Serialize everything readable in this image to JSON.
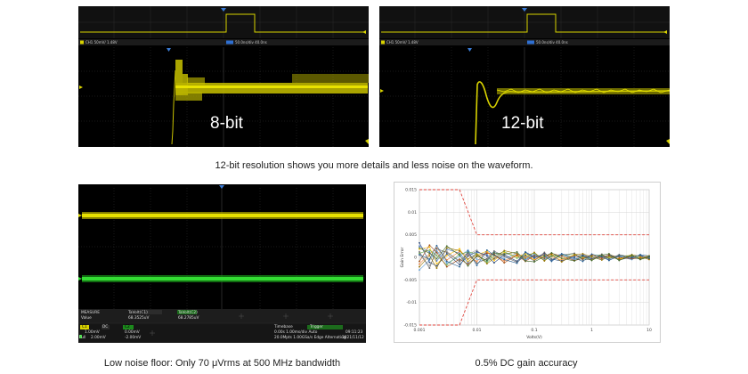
{
  "panels": {
    "p8": {
      "overview_left": "CH1 50mV/ 1.48V",
      "overview_right": "50.0ns/div  40.0ns",
      "resolution_label": "8-bit"
    },
    "p12": {
      "overview_left": "CH1 50mV/ 1.48V",
      "overview_right": "50.0ns/div  40.0ns",
      "resolution_label": "12-bit"
    },
    "noise": {
      "measure": {
        "title": "MEASURE",
        "col1": "TaVolt(C1)",
        "col2": "TaVolt(C2)",
        "row_label": "Value",
        "val1": "68.3525uV",
        "val2": "68.2785uV"
      },
      "channels": {
        "c1_name": "C1",
        "c1_row": [
          "DC",
          "1.00mV",
          "0.00mV"
        ],
        "c2_name": "C2",
        "c2_row": [
          "Full",
          "2.00mV",
          "-2.00mV"
        ]
      },
      "timebase": {
        "title": "Timebase",
        "line1": "0.00s  1.00ms/div  Auto",
        "line2": "20.0Mpts  1.00GSa/s  Edge  Alternating",
        "trigger": "Trigger",
        "date": "09:11:23",
        "date2": "2021/11/12"
      }
    }
  },
  "captions": {
    "top": "12-bit resolution shows you more details and less noise on the waveform.",
    "bottom_left": "Low noise floor: Only 70 μVrms at 500 MHz bandwidth",
    "bottom_right": "0.5% DC gain accuracy"
  },
  "chart_data": {
    "type": "line",
    "ylabel": "Gain Error",
    "xlabel": "Volts(V)",
    "x_scale": "log",
    "xlim": [
      0.001,
      10
    ],
    "ylim": [
      -0.015,
      0.015
    ],
    "x_ticks": [
      "0.001",
      "0.01",
      "0.1",
      "1",
      "10"
    ],
    "y_ticks": [
      "0.015",
      "0.01",
      "0.005",
      "0",
      "-0.005",
      "-0.01",
      "-0.015"
    ],
    "grid": true,
    "limit_lines": {
      "color": "#e0443c",
      "upper": [
        [
          0.001,
          0.015
        ],
        [
          0.005,
          0.015
        ],
        [
          0.01,
          0.005
        ],
        [
          10,
          0.005
        ]
      ],
      "lower": [
        [
          0.001,
          -0.015
        ],
        [
          0.005,
          -0.015
        ],
        [
          0.01,
          -0.005
        ],
        [
          10,
          -0.005
        ]
      ]
    },
    "x": [
      0.001,
      0.0015,
      0.002,
      0.003,
      0.005,
      0.007,
      0.01,
      0.015,
      0.02,
      0.03,
      0.05,
      0.07,
      0.1,
      0.15,
      0.2,
      0.3,
      0.5,
      0.7,
      1,
      1.5,
      2,
      3,
      5,
      7,
      10
    ],
    "series": [
      {
        "color": "#4472c4",
        "values": [
          0.0025,
          0.0012,
          -0.0008,
          0.0018,
          0.0009,
          -0.0012,
          0.0011,
          0.0006,
          -0.0004,
          0.0009,
          0.0003,
          -0.0006,
          0.0005,
          0.0002,
          -0.0007,
          0.0006,
          -0.0003,
          0.0004,
          -0.0005,
          0.0003,
          -0.0006,
          0.0002,
          -0.0004,
          0.0003,
          -0.0002
        ]
      },
      {
        "color": "#ed7d31",
        "values": [
          -0.0015,
          0.0008,
          0.0021,
          -0.0006,
          0.0013,
          0.0004,
          -0.0009,
          0.0012,
          0.0003,
          -0.0008,
          0.0006,
          0.0002,
          -0.0005,
          0.0007,
          0.0001,
          -0.0006,
          0.0004,
          -0.0002,
          0.0006,
          -0.0004,
          0.0003,
          -0.0005,
          0.0002,
          -0.0003,
          0.0001
        ]
      },
      {
        "color": "#a5a5a5",
        "values": [
          0.0005,
          -0.0018,
          0.0009,
          0.0014,
          -0.0011,
          0.0007,
          0.0016,
          -0.0005,
          0.0009,
          0.0004,
          -0.0008,
          0.0006,
          0.0003,
          -0.0006,
          0.0005,
          0.0002,
          -0.0004,
          0.0006,
          -0.0001,
          0.0004,
          -0.0003,
          0.0005,
          -0.0002,
          0.0001,
          -0.0004
        ]
      },
      {
        "color": "#ffc000",
        "values": [
          0.0018,
          0.0023,
          -0.0014,
          0.0004,
          0.0019,
          -0.0009,
          0.0005,
          0.0014,
          -0.0007,
          0.0011,
          0.0002,
          0.0008,
          -0.0006,
          0.0004,
          0.0007,
          -0.0003,
          0.0005,
          0.0001,
          -0.0006,
          0.0004,
          0.0001,
          -0.0004,
          0.0003,
          -0.0001,
          0.0004
        ]
      },
      {
        "color": "#5b9bd5",
        "values": [
          -0.0028,
          -0.0006,
          0.0015,
          -0.0013,
          0.0002,
          0.0016,
          -0.0004,
          -0.0009,
          0.0012,
          -0.0003,
          0.0009,
          -0.0005,
          0.0008,
          -0.0004,
          0.0003,
          0.0007,
          -0.0006,
          0.0003,
          0.0002,
          -0.0005,
          0.0004,
          0.0001,
          -0.0005,
          0.0004,
          -0.0001
        ]
      },
      {
        "color": "#70ad47",
        "values": [
          0.0009,
          0.0016,
          0.0004,
          -0.0017,
          0.0007,
          0.0012,
          0.0008,
          -0.0011,
          0.0004,
          0.0013,
          -0.0002,
          0.0005,
          0.0009,
          -0.0007,
          0.0002,
          0.0004,
          0.0008,
          -0.0004,
          0.0003,
          0.0006,
          -0.0002,
          0.0003,
          0.0004,
          -0.0003,
          0.0002
        ]
      },
      {
        "color": "#264478",
        "values": [
          0.0032,
          -0.0011,
          -0.0019,
          0.0008,
          -0.0016,
          0.0003,
          0.0013,
          0.0003,
          -0.0012,
          0.0006,
          -0.0009,
          0.0011,
          -0.0002,
          0.0009,
          -0.0004,
          -0.0008,
          0.0002,
          0.0005,
          -0.0003,
          0.0001,
          0.0005,
          -0.0006,
          0.0001,
          0.0005,
          -0.0003
        ]
      },
      {
        "color": "#9e480e",
        "values": [
          -0.0009,
          0.0027,
          0.0011,
          -0.0021,
          -0.0004,
          -0.0015,
          0.0002,
          0.0009,
          0.0007,
          -0.0012,
          0.0005,
          -0.0009,
          0.0004,
          -0.0002,
          0.0009,
          0.0003,
          -0.0007,
          -0.0003,
          0.0005,
          -0.0002,
          0.0006,
          0.0,
          -0.0003,
          -0.0002,
          0.0003
        ]
      },
      {
        "color": "#636363",
        "values": [
          0.0012,
          -0.0024,
          0.0019,
          0.0011,
          -0.0008,
          0.0009,
          -0.0013,
          -0.0003,
          0.0014,
          0.0002,
          -0.0011,
          0.0004,
          -0.0008,
          0.0011,
          -0.0005,
          0.0005,
          0.0009,
          -0.0006,
          -0.0004,
          0.0007,
          -0.0004,
          0.0006,
          0.0,
          -0.0004,
          0.0
        ]
      },
      {
        "color": "#997300",
        "values": [
          -0.0021,
          0.0004,
          -0.0024,
          0.0021,
          0.0015,
          -0.0004,
          0.0007,
          -0.0014,
          -0.0002,
          0.0015,
          0.0008,
          -0.0002,
          0.0011,
          -0.0008,
          0.0006,
          -0.001,
          0.0006,
          0.0008,
          0.0001,
          -0.0006,
          0.0002,
          -0.0003,
          0.0006,
          0.0002,
          -0.0005
        ]
      },
      {
        "color": "#255e91",
        "values": [
          0.0006,
          -0.0004,
          0.0026,
          -0.0009,
          -0.0021,
          0.0014,
          -0.0018,
          0.0016,
          0.0005,
          -0.0005,
          -0.0013,
          0.0012,
          0.0001,
          0.0005,
          -0.0009,
          0.0008,
          -0.0001,
          -0.0009,
          0.0007,
          0.0002,
          -0.0007,
          0.0004,
          -0.0001,
          0.0006,
          0.0003
        ]
      },
      {
        "color": "#43682b",
        "values": [
          0.0021,
          0.0009,
          -0.0003,
          0.0025,
          0.0005,
          -0.0019,
          0.0003,
          -0.0007,
          0.001,
          0.0007,
          0.0012,
          -0.0008,
          -0.001,
          0.0002,
          0.001,
          -0.0002,
          -0.0008,
          0.0002,
          -0.0007,
          0.0005,
          0.0008,
          -0.0007,
          0.0005,
          -0.0005,
          0.0001
        ]
      }
    ]
  }
}
